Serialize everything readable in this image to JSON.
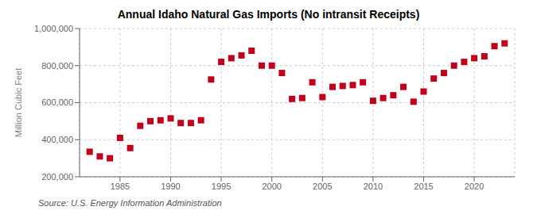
{
  "chart_data": {
    "type": "scatter",
    "title": "Annual Idaho Natural Gas Imports (No intransit Receipts)",
    "ylabel": "Million Cubic Feet",
    "source": "Source: U.S. Energy Information Administration",
    "x": [
      1982,
      1983,
      1984,
      1985,
      1986,
      1987,
      1988,
      1989,
      1990,
      1991,
      1992,
      1993,
      1994,
      1995,
      1996,
      1997,
      1998,
      1999,
      2000,
      2001,
      2002,
      2003,
      2004,
      2005,
      2006,
      2007,
      2008,
      2009,
      2010,
      2011,
      2012,
      2013,
      2014,
      2015,
      2016,
      2017,
      2018,
      2019,
      2020,
      2021,
      2022,
      2023
    ],
    "values": [
      335000,
      310000,
      300000,
      410000,
      355000,
      475000,
      500000,
      505000,
      515000,
      490000,
      490000,
      505000,
      725000,
      820000,
      840000,
      855000,
      880000,
      800000,
      800000,
      760000,
      620000,
      625000,
      710000,
      630000,
      685000,
      690000,
      695000,
      710000,
      610000,
      625000,
      640000,
      685000,
      605000,
      660000,
      730000,
      760000,
      800000,
      820000,
      840000,
      850000,
      905000,
      920000
    ],
    "color": "#c0001a",
    "marker": "square",
    "xlim": [
      1981,
      2024
    ],
    "ylim": [
      200000,
      1000000
    ],
    "xticks": [
      1985,
      1990,
      1995,
      2000,
      2005,
      2010,
      2015,
      2020
    ],
    "yticks": [
      {
        "value": 200000,
        "label": "200,000"
      },
      {
        "value": 400000,
        "label": "400,000"
      },
      {
        "value": 600000,
        "label": "600,000"
      },
      {
        "value": 800000,
        "label": "800,000"
      },
      {
        "value": 1000000,
        "label": "1,000,000"
      }
    ],
    "grid": true
  }
}
